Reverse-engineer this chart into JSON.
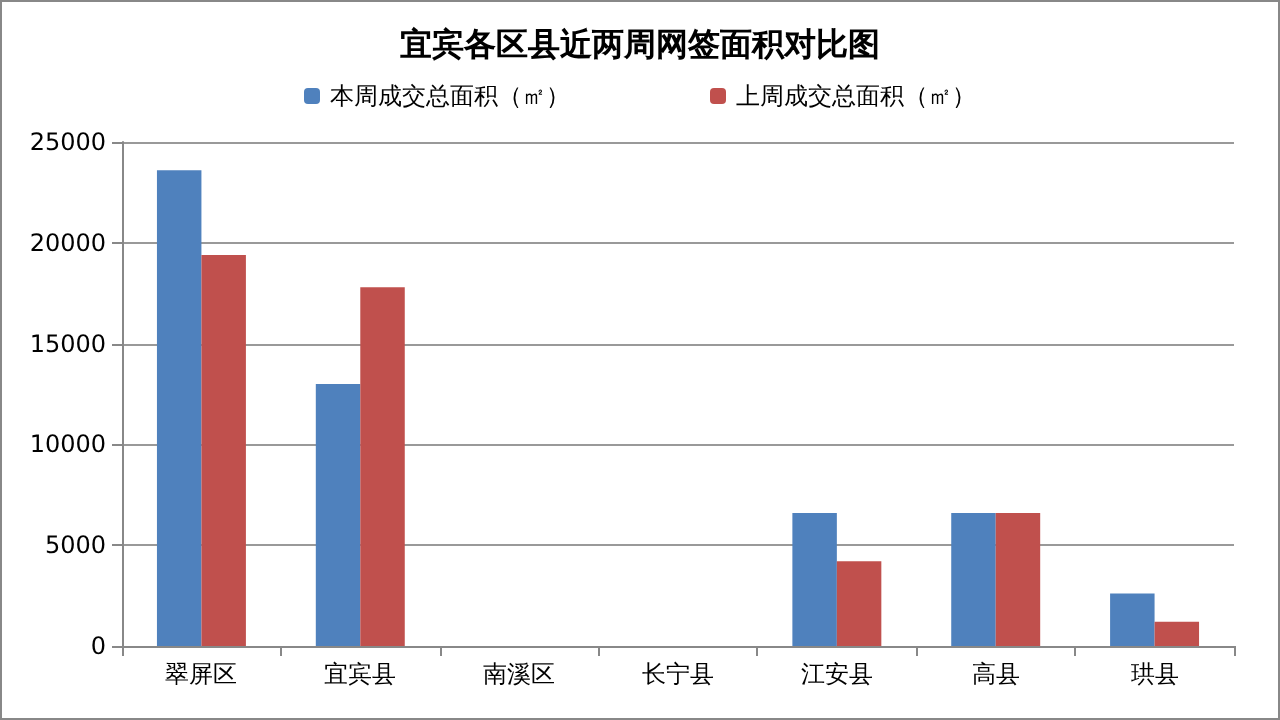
{
  "chart_data": {
    "type": "bar",
    "title": "宜宾各区县近两周网签面积对比图",
    "categories": [
      "翠屏区",
      "宜宾县",
      "南溪区",
      "长宁县",
      "江安县",
      "高县",
      "珙县"
    ],
    "series": [
      {
        "name": "本周成交总面积（㎡）",
        "color": "#4f81bd",
        "values": [
          23600,
          13000,
          0,
          0,
          6600,
          6600,
          2600
        ]
      },
      {
        "name": "上周成交总面积（㎡）",
        "color": "#c0504d",
        "values": [
          19400,
          17800,
          0,
          0,
          4200,
          6600,
          1200
        ]
      }
    ],
    "ylim": [
      0,
      25000
    ],
    "yticks": [
      0,
      5000,
      10000,
      15000,
      20000,
      25000
    ],
    "grid": "y",
    "legend": "top"
  }
}
